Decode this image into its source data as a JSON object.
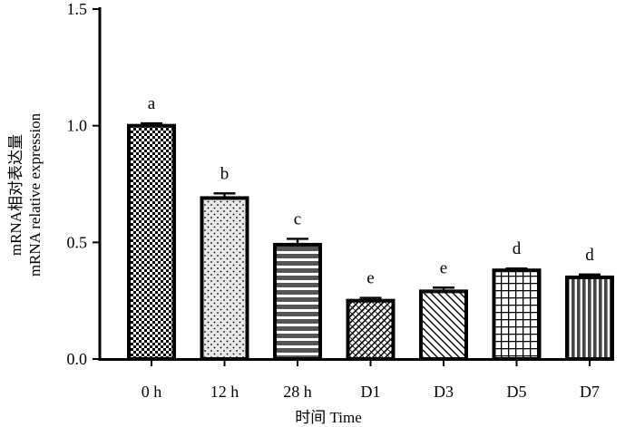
{
  "chart_data": {
    "type": "bar",
    "categories": [
      "0 h",
      "12 h",
      "28 h",
      "D1",
      "D3",
      "D5",
      "D7"
    ],
    "values": [
      1.0,
      0.69,
      0.49,
      0.25,
      0.29,
      0.38,
      0.35
    ],
    "errors": [
      0.01,
      0.02,
      0.025,
      0.012,
      0.016,
      0.008,
      0.012
    ],
    "significance_letters": [
      "a",
      "b",
      "c",
      "e",
      "e",
      "d",
      "d"
    ],
    "fill_patterns": [
      "checker",
      "dots",
      "hlines",
      "crosshatch",
      "diag",
      "grid",
      "vlines"
    ],
    "ylim": [
      0,
      1.5
    ],
    "yticks": [
      "0.0",
      "0.5",
      "1.0",
      "1.5"
    ],
    "xlabel": "时间  Time",
    "ylabel_line1": "mRNA相对表达量",
    "ylabel_line2": "mRNA relative expression",
    "grid": false,
    "legend": "none",
    "colors": {
      "bar_stroke": "#000000",
      "pattern": "#000000",
      "background": "#ffffff"
    }
  }
}
